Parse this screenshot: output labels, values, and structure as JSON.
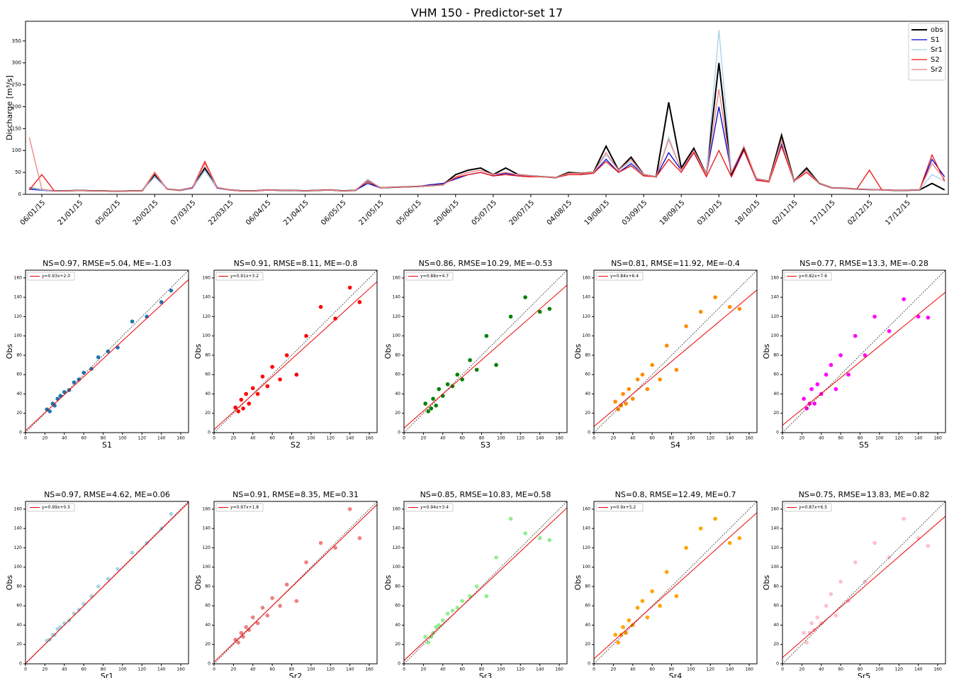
{
  "chart_data": [
    {
      "type": "line",
      "title": "VHM 150 - Predictor-set 17",
      "ylabel": "Discharge [m³/s]",
      "categories": [
        null,
        "06/01/15",
        null,
        null,
        "21/01/15",
        null,
        null,
        "05/02/15",
        null,
        null,
        "20/02/15",
        null,
        null,
        "07/03/15",
        null,
        null,
        "22/03/15",
        null,
        null,
        "06/04/15",
        null,
        null,
        "21/04/15",
        null,
        null,
        "06/05/15",
        null,
        null,
        "21/05/15",
        null,
        null,
        "05/06/15",
        null,
        null,
        "20/06/15",
        null,
        null,
        "05/07/15",
        null,
        null,
        "20/07/15",
        null,
        null,
        "04/08/15",
        null,
        null,
        "19/08/15",
        null,
        null,
        "03/09/15",
        null,
        null,
        "18/09/15",
        null,
        null,
        "03/10/15",
        null,
        null,
        "18/10/15",
        null,
        null,
        "02/11/15",
        null,
        null,
        "17/11/15",
        null,
        null,
        "02/12/15",
        null,
        null,
        "17/12/15",
        null,
        null,
        null
      ],
      "series": [
        {
          "name": "obs",
          "color": "#000000",
          "values": [
            15,
            10,
            8,
            8,
            9,
            8,
            8,
            7,
            8,
            8,
            45,
            12,
            9,
            15,
            60,
            15,
            10,
            8,
            8,
            10,
            9,
            9,
            8,
            9,
            10,
            8,
            9,
            30,
            15,
            16,
            17,
            18,
            20,
            22,
            45,
            55,
            60,
            45,
            60,
            45,
            42,
            40,
            38,
            50,
            48,
            50,
            110,
            55,
            85,
            45,
            40,
            210,
            60,
            105,
            45,
            300,
            45,
            105,
            35,
            30,
            135,
            30,
            60,
            25,
            15,
            14,
            12,
            11,
            10,
            9,
            9,
            10,
            25,
            10
          ]
        },
        {
          "name": "S1",
          "color": "#0000cc",
          "values": [
            12,
            9,
            8,
            8,
            9,
            8,
            8,
            7,
            8,
            8,
            40,
            12,
            9,
            14,
            55,
            14,
            10,
            8,
            8,
            10,
            9,
            9,
            8,
            9,
            10,
            8,
            9,
            25,
            15,
            16,
            17,
            18,
            22,
            25,
            35,
            45,
            50,
            42,
            48,
            42,
            40,
            40,
            38,
            45,
            45,
            48,
            80,
            50,
            70,
            45,
            40,
            95,
            55,
            95,
            45,
            200,
            50,
            100,
            32,
            30,
            115,
            30,
            55,
            25,
            15,
            14,
            12,
            11,
            10,
            9,
            9,
            10,
            80,
            40
          ]
        },
        {
          "name": "Sr1",
          "color": "#a6cfe6",
          "values": [
            15,
            10,
            8,
            8,
            9,
            8,
            8,
            7,
            8,
            8,
            40,
            12,
            9,
            15,
            55,
            15,
            10,
            8,
            8,
            10,
            9,
            9,
            8,
            9,
            10,
            8,
            9,
            35,
            15,
            16,
            17,
            18,
            20,
            22,
            40,
            50,
            55,
            45,
            50,
            45,
            42,
            40,
            38,
            45,
            45,
            50,
            90,
            55,
            75,
            45,
            40,
            130,
            55,
            100,
            45,
            375,
            50,
            110,
            35,
            30,
            120,
            30,
            55,
            25,
            15,
            14,
            12,
            11,
            10,
            9,
            9,
            10,
            45,
            30
          ]
        },
        {
          "name": "S2",
          "color": "#ee1111",
          "values": [
            10,
            45,
            8,
            8,
            9,
            8,
            8,
            7,
            8,
            8,
            50,
            12,
            9,
            15,
            75,
            15,
            10,
            8,
            8,
            10,
            9,
            9,
            8,
            9,
            10,
            8,
            9,
            30,
            15,
            16,
            17,
            18,
            20,
            22,
            38,
            45,
            50,
            42,
            45,
            42,
            40,
            40,
            38,
            45,
            45,
            48,
            75,
            50,
            65,
            42,
            40,
            80,
            50,
            95,
            40,
            100,
            40,
            100,
            32,
            28,
            110,
            30,
            50,
            25,
            15,
            14,
            12,
            55,
            10,
            9,
            9,
            10,
            90,
            30
          ]
        },
        {
          "name": "Sr2",
          "color": "#f08080",
          "values": [
            130,
            12,
            8,
            8,
            9,
            8,
            8,
            7,
            8,
            8,
            48,
            12,
            9,
            15,
            70,
            15,
            10,
            8,
            8,
            10,
            9,
            9,
            8,
            9,
            10,
            8,
            9,
            32,
            15,
            16,
            17,
            18,
            20,
            22,
            40,
            50,
            55,
            45,
            50,
            45,
            42,
            40,
            38,
            48,
            48,
            50,
            95,
            55,
            80,
            45,
            40,
            125,
            55,
            100,
            45,
            240,
            50,
            110,
            35,
            30,
            125,
            30,
            55,
            25,
            15,
            14,
            12,
            11,
            10,
            9,
            9,
            10,
            70,
            35
          ]
        }
      ],
      "ylim": [
        0,
        395
      ],
      "yticks": [
        0,
        50,
        100,
        150,
        200,
        250,
        300,
        350
      ],
      "legend": "upper right"
    },
    {
      "type": "scatter",
      "title": "NS=0.97, RMSE=5.04, ME=-1.03",
      "xlabel": "S1",
      "ylabel": "Obs",
      "color": "#1f77b4",
      "x": [
        22,
        25,
        28,
        30,
        33,
        36,
        40,
        45,
        50,
        55,
        60,
        68,
        75,
        85,
        95,
        110,
        125,
        140,
        150
      ],
      "y": [
        24,
        22,
        30,
        28,
        35,
        38,
        42,
        44,
        52,
        55,
        62,
        66,
        78,
        84,
        88,
        115,
        120,
        135,
        147
      ],
      "fit": {
        "label": "y=0.93x+2.0",
        "slope": 0.93,
        "intercept": 2.0
      },
      "xlim": [
        0,
        168
      ],
      "ylim": [
        0,
        168
      ],
      "xticks": [
        0,
        20,
        40,
        60,
        80,
        100,
        120,
        140,
        160
      ],
      "yticks": [
        0,
        20,
        40,
        60,
        80,
        100,
        120,
        140,
        160
      ]
    },
    {
      "type": "scatter",
      "title": "NS=0.91, RMSE=8.11, ME=-0.8",
      "xlabel": "S2",
      "ylabel": "Obs",
      "color": "#ff0000",
      "x": [
        22,
        25,
        28,
        30,
        33,
        36,
        40,
        45,
        50,
        55,
        60,
        68,
        75,
        85,
        95,
        110,
        125,
        140,
        150
      ],
      "y": [
        26,
        22,
        34,
        25,
        40,
        30,
        46,
        40,
        58,
        48,
        68,
        55,
        80,
        60,
        100,
        130,
        118,
        150,
        135
      ],
      "fit": {
        "label": "y=0.91x+3.2",
        "slope": 0.91,
        "intercept": 3.2
      },
      "xlim": [
        0,
        168
      ],
      "ylim": [
        0,
        168
      ],
      "xticks": [
        0,
        20,
        40,
        60,
        80,
        100,
        120,
        140,
        160
      ],
      "yticks": [
        0,
        20,
        40,
        60,
        80,
        100,
        120,
        140,
        160
      ]
    },
    {
      "type": "scatter",
      "title": "NS=0.86, RMSE=10.29, ME=-0.53",
      "xlabel": "S3",
      "ylabel": "Obs",
      "color": "#008000",
      "x": [
        22,
        25,
        28,
        30,
        33,
        36,
        40,
        45,
        50,
        55,
        60,
        68,
        75,
        85,
        95,
        110,
        125,
        140,
        150
      ],
      "y": [
        30,
        22,
        25,
        35,
        28,
        45,
        38,
        50,
        48,
        60,
        55,
        75,
        65,
        100,
        70,
        120,
        140,
        125,
        128
      ],
      "fit": {
        "label": "y=0.88x+4.7",
        "slope": 0.88,
        "intercept": 4.7
      },
      "xlim": [
        0,
        168
      ],
      "ylim": [
        0,
        168
      ],
      "xticks": [
        0,
        20,
        40,
        60,
        80,
        100,
        120,
        140,
        160
      ],
      "yticks": [
        0,
        20,
        40,
        60,
        80,
        100,
        120,
        140,
        160
      ]
    },
    {
      "type": "scatter",
      "title": "NS=0.81, RMSE=11.92, ME=-0.4",
      "xlabel": "S4",
      "ylabel": "Obs",
      "color": "#ff8c00",
      "x": [
        22,
        25,
        28,
        30,
        33,
        36,
        40,
        45,
        50,
        55,
        60,
        68,
        75,
        85,
        95,
        110,
        125,
        140,
        150
      ],
      "y": [
        32,
        24,
        28,
        40,
        30,
        45,
        35,
        55,
        60,
        45,
        70,
        55,
        90,
        65,
        110,
        125,
        140,
        130,
        128
      ],
      "fit": {
        "label": "y=0.84x+6.4",
        "slope": 0.84,
        "intercept": 6.4
      },
      "xlim": [
        0,
        168
      ],
      "ylim": [
        0,
        168
      ],
      "xticks": [
        0,
        20,
        40,
        60,
        80,
        100,
        120,
        140,
        160
      ],
      "yticks": [
        0,
        20,
        40,
        60,
        80,
        100,
        120,
        140,
        160
      ]
    },
    {
      "type": "scatter",
      "title": "NS=0.77, RMSE=13.3, ME=-0.28",
      "xlabel": "S5",
      "ylabel": "Obs",
      "color": "#ff00ff",
      "x": [
        22,
        25,
        28,
        30,
        33,
        36,
        40,
        45,
        50,
        55,
        60,
        68,
        75,
        85,
        95,
        110,
        125,
        140,
        150
      ],
      "y": [
        35,
        25,
        30,
        45,
        30,
        50,
        40,
        60,
        70,
        45,
        80,
        60,
        100,
        80,
        120,
        105,
        138,
        120,
        119
      ],
      "fit": {
        "label": "y=0.82x+7.6",
        "slope": 0.82,
        "intercept": 7.6
      },
      "xlim": [
        0,
        168
      ],
      "ylim": [
        0,
        168
      ],
      "xticks": [
        0,
        20,
        40,
        60,
        80,
        100,
        120,
        140,
        160
      ],
      "yticks": [
        0,
        20,
        40,
        60,
        80,
        100,
        120,
        140,
        160
      ]
    },
    {
      "type": "scatter",
      "title": "NS=0.97, RMSE=4.62, ME=0.06",
      "xlabel": "Sr1",
      "ylabel": "Obs",
      "color": "#a6d4e6",
      "x": [
        22,
        25,
        28,
        30,
        33,
        36,
        40,
        45,
        50,
        55,
        60,
        68,
        75,
        85,
        95,
        110,
        125,
        140,
        150
      ],
      "y": [
        24,
        25,
        30,
        30,
        36,
        38,
        42,
        45,
        52,
        56,
        62,
        70,
        80,
        88,
        98,
        115,
        125,
        140,
        155
      ],
      "fit": {
        "label": "y=0.99x+0.5",
        "slope": 0.99,
        "intercept": 0.5
      },
      "xlim": [
        0,
        168
      ],
      "ylim": [
        0,
        168
      ],
      "xticks": [
        0,
        20,
        40,
        60,
        80,
        100,
        120,
        140,
        160
      ],
      "yticks": [
        0,
        20,
        40,
        60,
        80,
        100,
        120,
        140,
        160
      ]
    },
    {
      "type": "scatter",
      "title": "NS=0.91, RMSE=8.35, ME=0.31",
      "xlabel": "Sr2",
      "ylabel": "Obs",
      "color": "#f08080",
      "x": [
        22,
        25,
        28,
        30,
        33,
        36,
        40,
        45,
        50,
        55,
        60,
        68,
        75,
        85,
        95,
        110,
        125,
        140,
        150
      ],
      "y": [
        25,
        22,
        32,
        28,
        38,
        35,
        48,
        42,
        58,
        50,
        68,
        60,
        82,
        65,
        105,
        125,
        120,
        160,
        130
      ],
      "fit": {
        "label": "y=0.97x+1.8",
        "slope": 0.97,
        "intercept": 1.8
      },
      "xlim": [
        0,
        168
      ],
      "ylim": [
        0,
        168
      ],
      "xticks": [
        0,
        20,
        40,
        60,
        80,
        100,
        120,
        140,
        160
      ],
      "yticks": [
        0,
        20,
        40,
        60,
        80,
        100,
        120,
        140,
        160
      ]
    },
    {
      "type": "scatter",
      "title": "NS=0.85, RMSE=10.83, ME=0.58",
      "xlabel": "Sr3",
      "ylabel": "Obs",
      "color": "#90ee90",
      "x": [
        22,
        25,
        28,
        30,
        33,
        36,
        40,
        45,
        50,
        55,
        60,
        68,
        75,
        85,
        95,
        110,
        125,
        140,
        150
      ],
      "y": [
        28,
        22,
        28,
        32,
        38,
        40,
        45,
        52,
        55,
        58,
        65,
        70,
        80,
        70,
        110,
        150,
        135,
        130,
        128
      ],
      "fit": {
        "label": "y=0.94x+3.4",
        "slope": 0.94,
        "intercept": 3.4
      },
      "xlim": [
        0,
        168
      ],
      "ylim": [
        0,
        168
      ],
      "xticks": [
        0,
        20,
        40,
        60,
        80,
        100,
        120,
        140,
        160
      ],
      "yticks": [
        0,
        20,
        40,
        60,
        80,
        100,
        120,
        140,
        160
      ]
    },
    {
      "type": "scatter",
      "title": "NS=0.8, RMSE=12.49, ME=0.7",
      "xlabel": "Sr4",
      "ylabel": "Obs",
      "color": "#ffa500",
      "x": [
        22,
        25,
        28,
        30,
        33,
        36,
        40,
        45,
        50,
        55,
        60,
        68,
        75,
        85,
        95,
        110,
        125,
        140,
        150
      ],
      "y": [
        30,
        22,
        30,
        38,
        32,
        45,
        40,
        58,
        65,
        48,
        75,
        60,
        95,
        70,
        120,
        140,
        150,
        125,
        130
      ],
      "fit": {
        "label": "y=0.9x+5.2",
        "slope": 0.9,
        "intercept": 5.2
      },
      "xlim": [
        0,
        168
      ],
      "ylim": [
        0,
        168
      ],
      "xticks": [
        0,
        20,
        40,
        60,
        80,
        100,
        120,
        140,
        160
      ],
      "yticks": [
        0,
        20,
        40,
        60,
        80,
        100,
        120,
        140,
        160
      ]
    },
    {
      "type": "scatter",
      "title": "NS=0.75, RMSE=13.83, ME=0.82",
      "xlabel": "Sr5",
      "ylabel": "Obs",
      "color": "#ffc0cb",
      "x": [
        22,
        25,
        28,
        30,
        33,
        36,
        40,
        45,
        50,
        55,
        60,
        68,
        75,
        85,
        95,
        110,
        125,
        140,
        150
      ],
      "y": [
        32,
        22,
        32,
        42,
        35,
        48,
        42,
        60,
        72,
        50,
        85,
        65,
        105,
        85,
        125,
        110,
        150,
        130,
        122
      ],
      "fit": {
        "label": "y=0.87x+6.5",
        "slope": 0.87,
        "intercept": 6.5
      },
      "xlim": [
        0,
        168
      ],
      "ylim": [
        0,
        168
      ],
      "xticks": [
        0,
        20,
        40,
        60,
        80,
        100,
        120,
        140,
        160
      ],
      "yticks": [
        0,
        20,
        40,
        60,
        80,
        100,
        120,
        140,
        160
      ]
    }
  ]
}
